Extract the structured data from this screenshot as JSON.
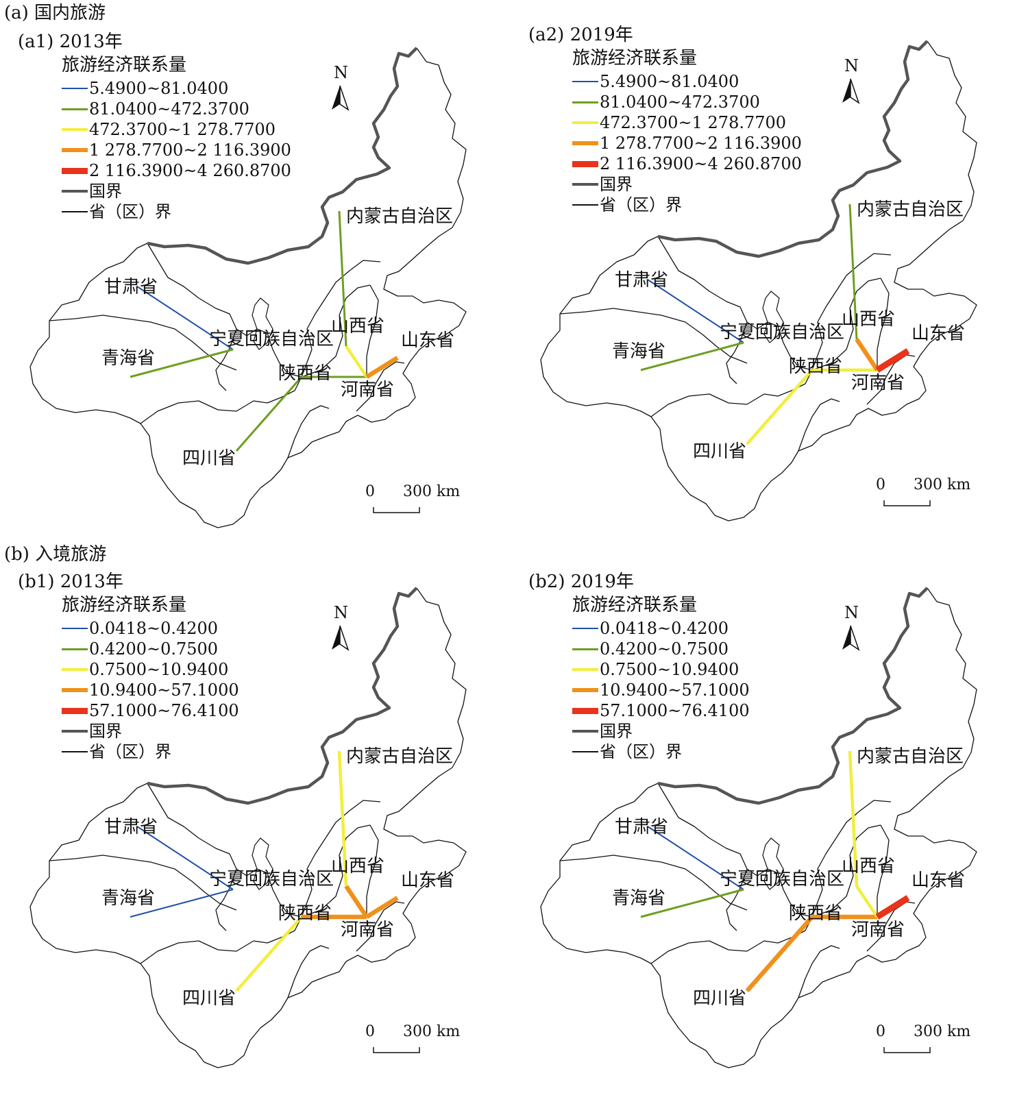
{
  "section_a": {
    "title": "(a) 国内旅游"
  },
  "section_b": {
    "title": "(b) 入境旅游"
  },
  "north_letter": "N",
  "scale": {
    "zero": "0",
    "distance": "300 km"
  },
  "legend_title": "旅游经济联系量",
  "legend_extra": {
    "national_border": "国界",
    "provincial_border": "省（区）界"
  },
  "legend_classes": {
    "domestic": [
      "5.4900~81.0400",
      "81.0400~472.3700",
      "472.3700~1 278.7700",
      "1 278.7700~2 116.3900",
      "2 116.3900~4 260.8700"
    ],
    "inbound": [
      "0.0418~0.4200",
      "0.4200~0.7500",
      "0.7500~10.9400",
      "10.9400~57.1000",
      "57.1000~76.4100"
    ]
  },
  "class_colors": [
    "#1f4fa8",
    "#6e9e1e",
    "#f2ee3c",
    "#f0911c",
    "#e8341c"
  ],
  "places": {
    "inner_mongolia": "内蒙古自治区",
    "gansu": "甘肃省",
    "ningxia": "宁夏回族自治区",
    "qinghai": "青海省",
    "shanxi": "山西省",
    "shandong": "山东省",
    "shaanxi": "陕西省",
    "henan": "河南省",
    "sichuan": "四川省"
  },
  "panels": {
    "a1": {
      "title": "(a1) 2013年",
      "links": [
        {
          "from": "shaanxi",
          "to": "sichuan",
          "class": 2
        },
        {
          "from": "shaanxi",
          "to": "henan",
          "class": 2
        },
        {
          "from": "shanxi",
          "to": "henan",
          "class": 3
        },
        {
          "from": "henan",
          "to": "shandong",
          "class": 4
        },
        {
          "from": "shanxi",
          "to": "inner_mongolia",
          "class": 2
        },
        {
          "from": "gansu",
          "to": "ningxia",
          "class": 1
        },
        {
          "from": "qinghai",
          "to": "ningxia",
          "class": 2
        }
      ]
    },
    "a2": {
      "title": "(a2) 2019年",
      "links": [
        {
          "from": "shaanxi",
          "to": "sichuan",
          "class": 3
        },
        {
          "from": "shaanxi",
          "to": "henan",
          "class": 3
        },
        {
          "from": "shanxi",
          "to": "henan",
          "class": 4
        },
        {
          "from": "henan",
          "to": "shandong",
          "class": 5
        },
        {
          "from": "shanxi",
          "to": "inner_mongolia",
          "class": 2
        },
        {
          "from": "gansu",
          "to": "ningxia",
          "class": 1
        },
        {
          "from": "qinghai",
          "to": "ningxia",
          "class": 2
        }
      ]
    },
    "b1": {
      "title": "(b1) 2013年",
      "links": [
        {
          "from": "shaanxi",
          "to": "sichuan",
          "class": 3
        },
        {
          "from": "shaanxi",
          "to": "henan",
          "class": 4
        },
        {
          "from": "shanxi",
          "to": "henan",
          "class": 4
        },
        {
          "from": "henan",
          "to": "shandong",
          "class": 4
        },
        {
          "from": "shanxi",
          "to": "inner_mongolia",
          "class": 3
        },
        {
          "from": "gansu",
          "to": "ningxia",
          "class": 1
        },
        {
          "from": "qinghai",
          "to": "ningxia",
          "class": 1
        }
      ]
    },
    "b2": {
      "title": "(b2) 2019年",
      "links": [
        {
          "from": "shaanxi",
          "to": "sichuan",
          "class": 4
        },
        {
          "from": "shaanxi",
          "to": "henan",
          "class": 4
        },
        {
          "from": "shanxi",
          "to": "henan",
          "class": 3
        },
        {
          "from": "henan",
          "to": "shandong",
          "class": 5
        },
        {
          "from": "shanxi",
          "to": "inner_mongolia",
          "class": 3
        },
        {
          "from": "gansu",
          "to": "ningxia",
          "class": 1
        },
        {
          "from": "qinghai",
          "to": "ningxia",
          "class": 2
        }
      ]
    }
  }
}
